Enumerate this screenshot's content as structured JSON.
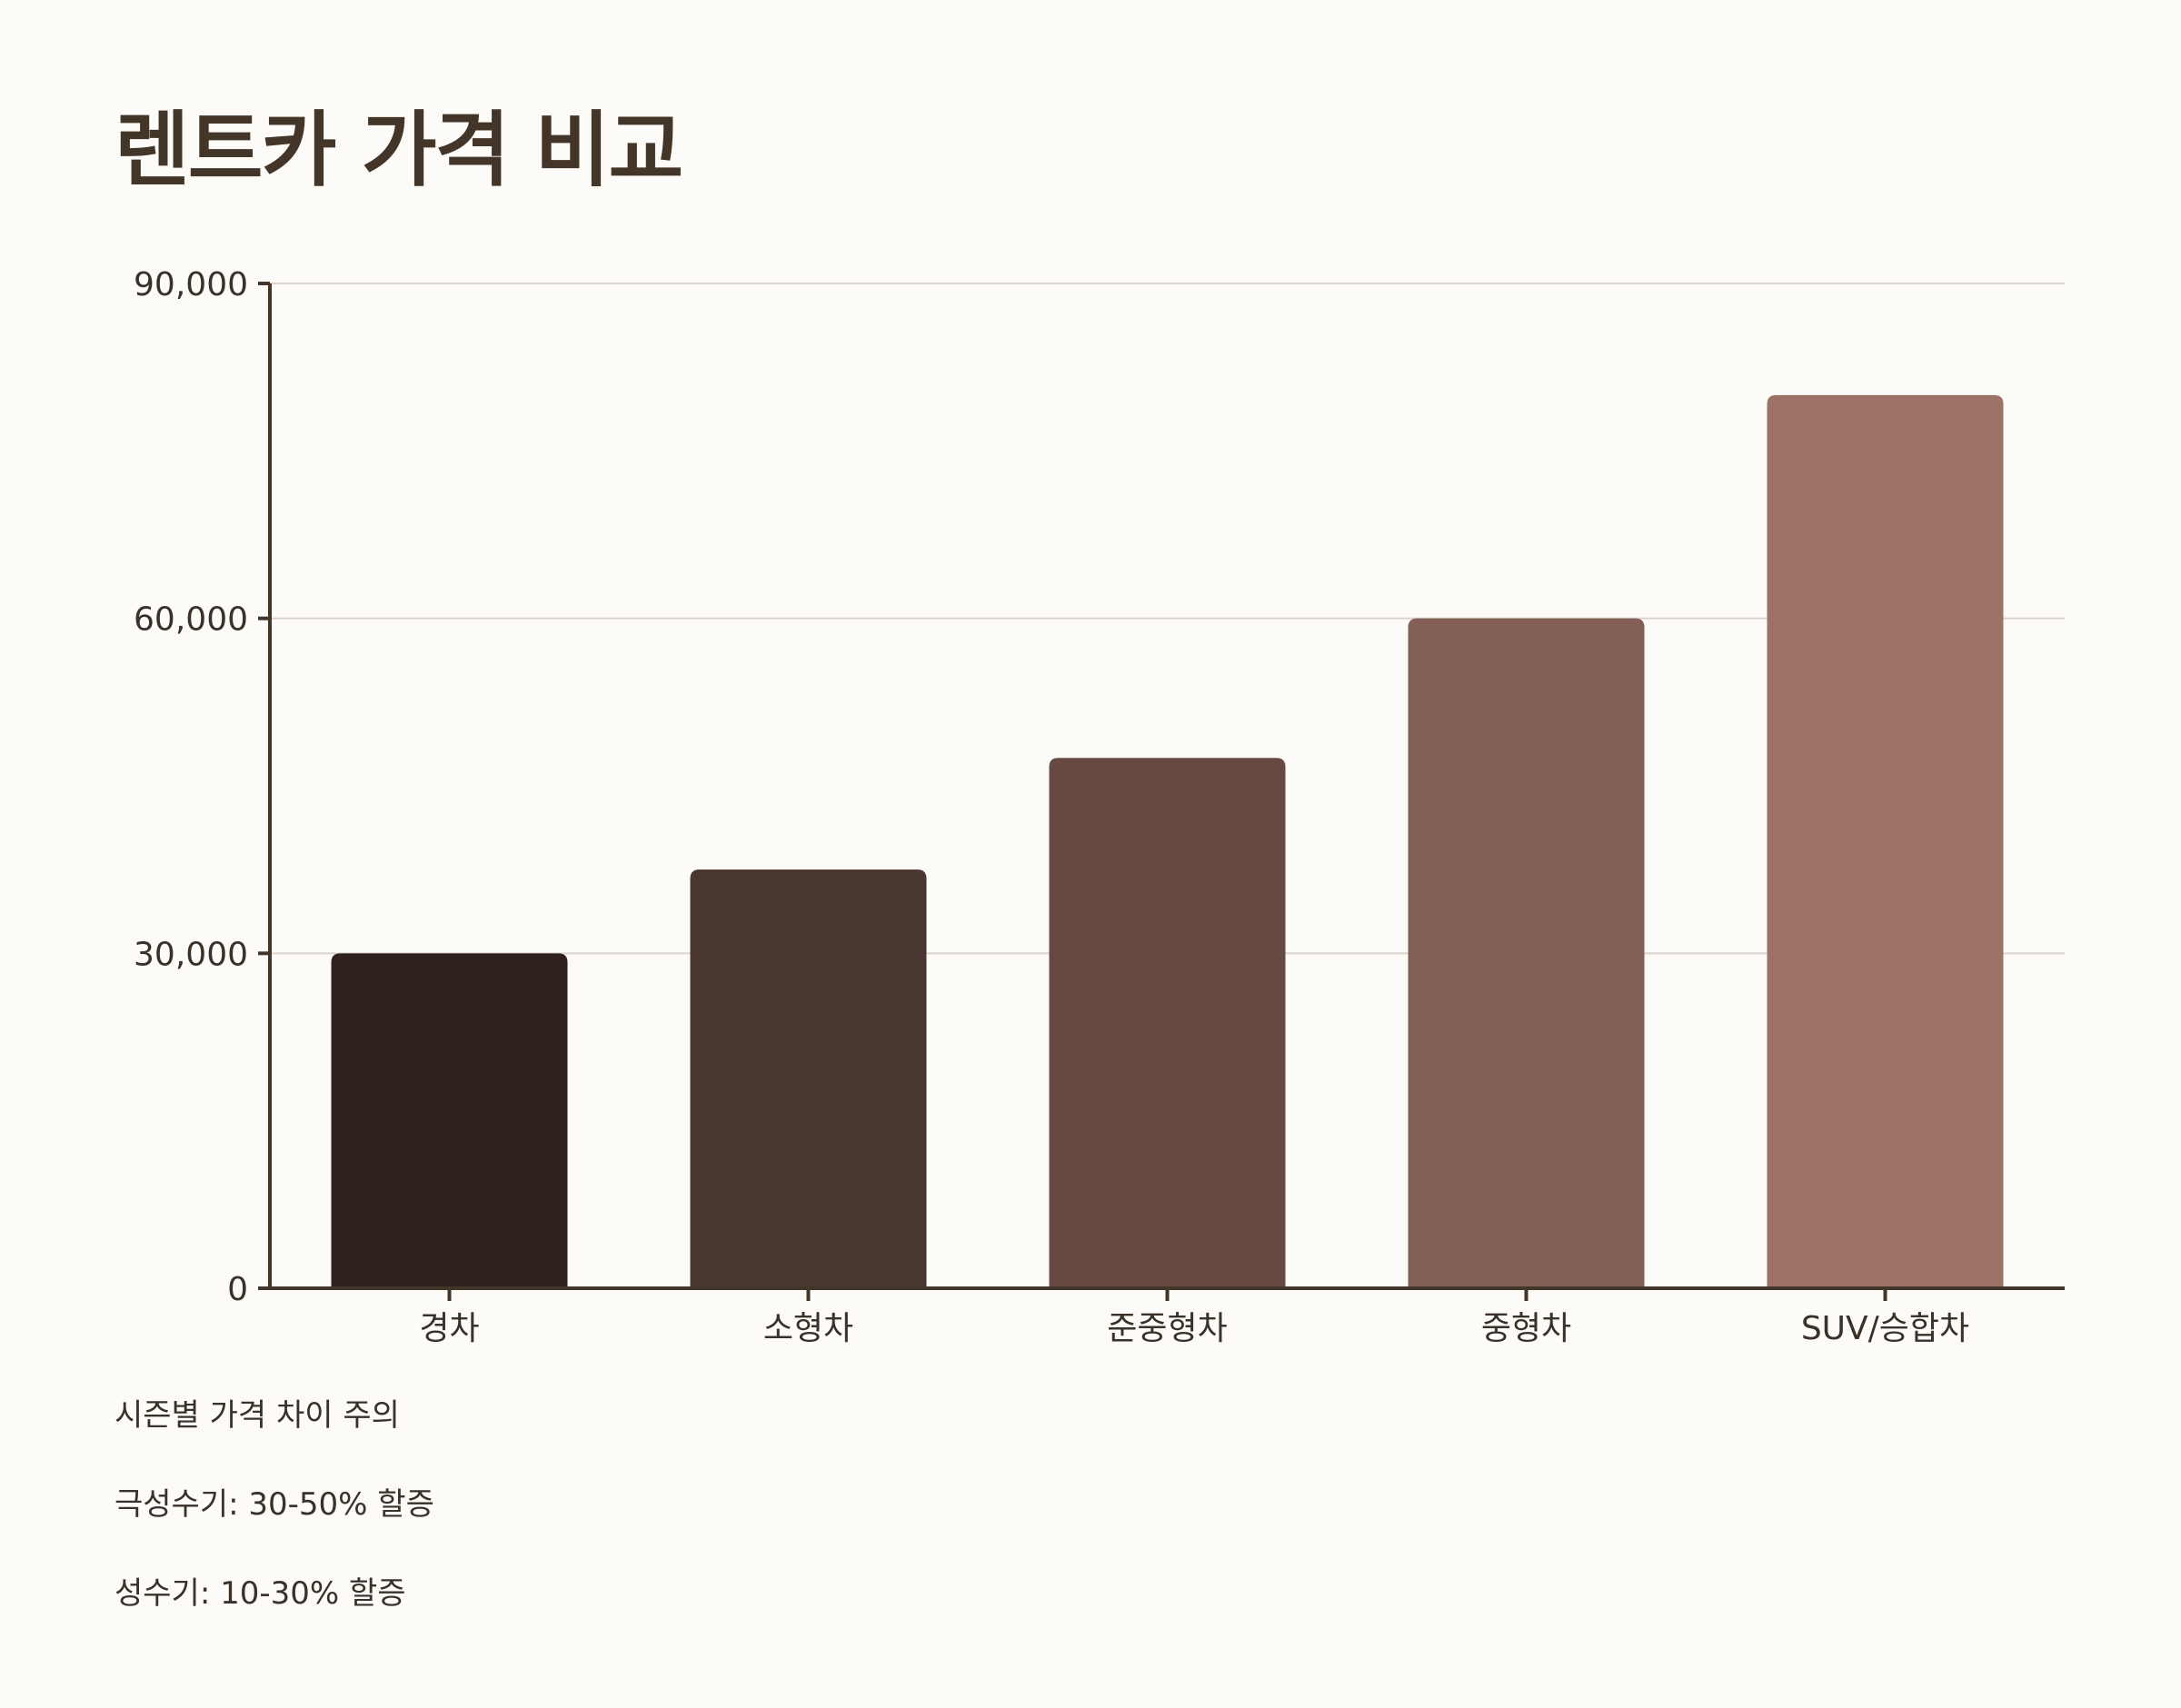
{
  "chart_data": {
    "type": "bar",
    "title": "렌트카 가격 비교",
    "categories": [
      "경차",
      "소형차",
      "준중형차",
      "중형차",
      "SUV/승합차"
    ],
    "values": [
      30000,
      37500,
      47500,
      60000,
      80000
    ],
    "colors": [
      "#2f211d",
      "#4a3630",
      "#664a42",
      "#835f55",
      "#9c7166"
    ],
    "ylim": [
      0,
      90000
    ],
    "yticks": [
      0,
      30000,
      60000,
      90000
    ],
    "ytick_labels": [
      "0",
      "30,000",
      "60,000",
      "90,000"
    ],
    "xlabel": "",
    "ylabel": "",
    "grid": true,
    "legend": "none"
  },
  "notes": [
    "시즌별 가격 차이 주의",
    "극성수기: 30-50% 할증",
    "성수기: 10-30% 할증"
  ]
}
